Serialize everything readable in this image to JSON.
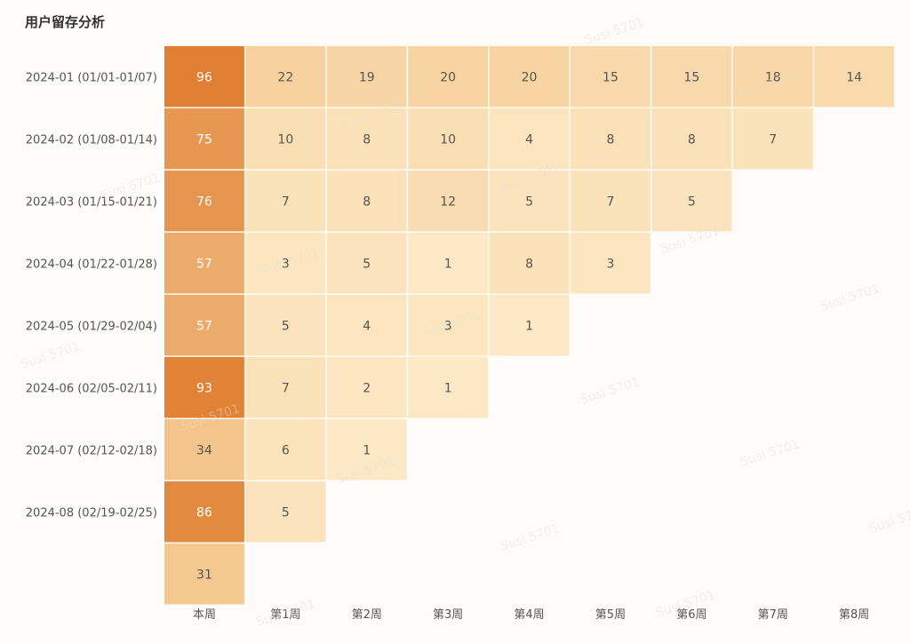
{
  "chart_data": {
    "type": "heatmap",
    "title": "用户留存分析",
    "rows": [
      "2024-01 (01/01-01/07)",
      "2024-02 (01/08-01/14)",
      "2024-03 (01/15-01/21)",
      "2024-04 (01/22-01/28)",
      "2024-05 (01/29-02/04)",
      "2024-06 (02/05-02/11)",
      "2024-07 (02/12-02/18)",
      "2024-08 (02/19-02/25)",
      ""
    ],
    "columns": [
      "本周",
      "第1周",
      "第2周",
      "第3周",
      "第4周",
      "第5周",
      "第6周",
      "第7周",
      "第8周"
    ],
    "values": [
      [
        96,
        22,
        19,
        20,
        20,
        15,
        15,
        18,
        14
      ],
      [
        75,
        10,
        8,
        10,
        4,
        8,
        8,
        7
      ],
      [
        76,
        7,
        8,
        12,
        5,
        7,
        5
      ],
      [
        57,
        3,
        5,
        1,
        8,
        3
      ],
      [
        57,
        5,
        4,
        3,
        1
      ],
      [
        93,
        7,
        2,
        1
      ],
      [
        34,
        6,
        1
      ],
      [
        86,
        5
      ],
      [
        31
      ]
    ],
    "color_scale": {
      "low": "#fce8c4",
      "high": "#e07f33"
    },
    "legend": "none",
    "grid": false
  },
  "watermark": {
    "text": "Susi 5701"
  }
}
